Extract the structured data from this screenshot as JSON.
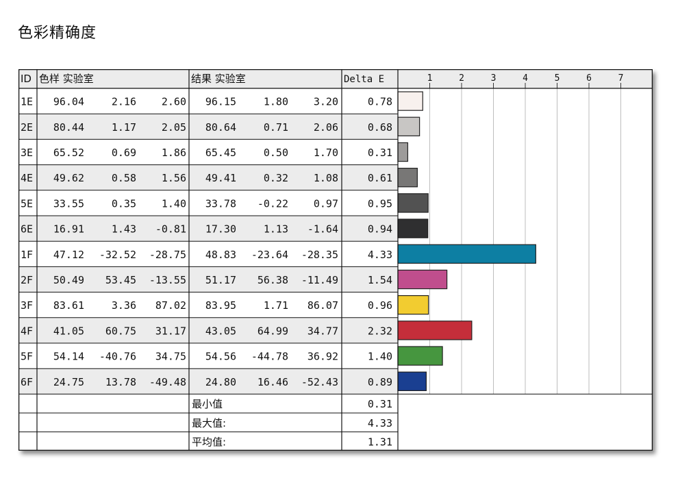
{
  "title": "色彩精确度",
  "headers": {
    "id": "ID",
    "sample": "色样 实验室",
    "result": "结果 实验室",
    "delta": "Delta E"
  },
  "chart_data": {
    "type": "bar",
    "orientation": "horizontal",
    "xlim": [
      0,
      7.8
    ],
    "x_ticks": [
      "1",
      "2",
      "3",
      "4",
      "5",
      "6",
      "7"
    ],
    "grid": true,
    "rows": [
      {
        "id": "1E",
        "sample": [
          "96.04",
          "2.16",
          "2.60"
        ],
        "result": [
          "96.15",
          "1.80",
          "3.20"
        ],
        "delta": "0.78",
        "value": 0.78,
        "color": "#f8f1ee"
      },
      {
        "id": "2E",
        "sample": [
          "80.44",
          "1.17",
          "2.05"
        ],
        "result": [
          "80.64",
          "0.71",
          "2.06"
        ],
        "delta": "0.68",
        "value": 0.68,
        "color": "#c8c6c4"
      },
      {
        "id": "3E",
        "sample": [
          "65.52",
          "0.69",
          "1.86"
        ],
        "result": [
          "65.45",
          "0.50",
          "1.70"
        ],
        "delta": "0.31",
        "value": 0.31,
        "color": "#9d9b9a"
      },
      {
        "id": "4E",
        "sample": [
          "49.62",
          "0.58",
          "1.56"
        ],
        "result": [
          "49.41",
          "0.32",
          "1.08"
        ],
        "delta": "0.61",
        "value": 0.61,
        "color": "#787776"
      },
      {
        "id": "5E",
        "sample": [
          "33.55",
          "0.35",
          "1.40"
        ],
        "result": [
          "33.78",
          "-0.22",
          "0.97"
        ],
        "delta": "0.95",
        "value": 0.95,
        "color": "#525252"
      },
      {
        "id": "6E",
        "sample": [
          "16.91",
          "1.43",
          "-0.81"
        ],
        "result": [
          "17.30",
          "1.13",
          "-1.64"
        ],
        "delta": "0.94",
        "value": 0.94,
        "color": "#2f2f30"
      },
      {
        "id": "1F",
        "sample": [
          "47.12",
          "-32.52",
          "-28.75"
        ],
        "result": [
          "48.83",
          "-23.64",
          "-28.35"
        ],
        "delta": "4.33",
        "value": 4.33,
        "color": "#0d7fa3"
      },
      {
        "id": "2F",
        "sample": [
          "50.49",
          "53.45",
          "-13.55"
        ],
        "result": [
          "51.17",
          "56.38",
          "-11.49"
        ],
        "delta": "1.54",
        "value": 1.54,
        "color": "#c04e8d"
      },
      {
        "id": "3F",
        "sample": [
          "83.61",
          "3.36",
          "87.02"
        ],
        "result": [
          "83.95",
          "1.71",
          "86.07"
        ],
        "delta": "0.96",
        "value": 0.96,
        "color": "#f2cc30"
      },
      {
        "id": "4F",
        "sample": [
          "41.05",
          "60.75",
          "31.17"
        ],
        "result": [
          "43.05",
          "64.99",
          "34.77"
        ],
        "delta": "2.32",
        "value": 2.32,
        "color": "#c52e3a"
      },
      {
        "id": "5F",
        "sample": [
          "54.14",
          "-40.76",
          "34.75"
        ],
        "result": [
          "54.56",
          "-44.78",
          "36.92"
        ],
        "delta": "1.40",
        "value": 1.4,
        "color": "#46963f"
      },
      {
        "id": "6F",
        "sample": [
          "24.75",
          "13.78",
          "-49.48"
        ],
        "result": [
          "24.80",
          "16.46",
          "-52.43"
        ],
        "delta": "0.89",
        "value": 0.89,
        "color": "#1a3f91"
      }
    ]
  },
  "summary": [
    {
      "label": "最小值",
      "value": "0.31"
    },
    {
      "label": "最大值:",
      "value": "4.33"
    },
    {
      "label": "平均值:",
      "value": "1.31"
    }
  ]
}
